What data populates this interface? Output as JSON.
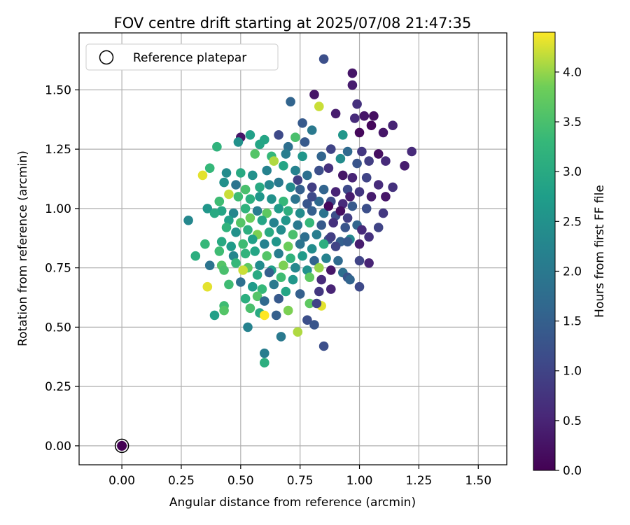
{
  "chart_data": {
    "type": "scatter",
    "title": "FOV centre drift starting at 2025/07/08 21:47:35",
    "xlabel": "Angular distance from reference (arcmin)",
    "ylabel": "Rotation from reference (arcmin)",
    "xlim": [
      -0.18,
      1.62
    ],
    "ylim": [
      -0.08,
      1.74
    ],
    "x_ticks": [
      "0.00",
      "0.25",
      "0.50",
      "0.75",
      "1.00",
      "1.25",
      "1.50"
    ],
    "y_ticks": [
      "0.00",
      "0.25",
      "0.50",
      "0.75",
      "1.00",
      "1.25",
      "1.50"
    ],
    "grid": true,
    "colormap": "viridis",
    "colorbar": {
      "label": "Hours from first FF file",
      "range": [
        0.0,
        4.4
      ],
      "ticks": [
        "0.0",
        "0.5",
        "1.0",
        "1.5",
        "2.0",
        "2.5",
        "3.0",
        "3.5",
        "4.0"
      ]
    },
    "legend": {
      "position": "top-left",
      "entries": [
        "Reference platepar"
      ]
    },
    "reference_point": {
      "x": 0.0,
      "y": 0.0
    },
    "points": [
      [
        0.85,
        1.63,
        1.2
      ],
      [
        0.97,
        1.57,
        0.3
      ],
      [
        0.97,
        1.52,
        0.4
      ],
      [
        0.81,
        1.48,
        0.3
      ],
      [
        0.71,
        1.45,
        1.6
      ],
      [
        0.99,
        1.44,
        0.7
      ],
      [
        0.83,
        1.43,
        4.2
      ],
      [
        0.9,
        1.4,
        0.4
      ],
      [
        0.98,
        1.38,
        0.6
      ],
      [
        1.02,
        1.39,
        0.3
      ],
      [
        1.06,
        1.39,
        0.2
      ],
      [
        1.14,
        1.35,
        0.5
      ],
      [
        0.76,
        1.36,
        1.4
      ],
      [
        1.0,
        1.32,
        0.1
      ],
      [
        1.05,
        1.35,
        0.1
      ],
      [
        1.1,
        1.32,
        0.3
      ],
      [
        0.8,
        1.33,
        2.0
      ],
      [
        0.93,
        1.31,
        2.6
      ],
      [
        0.66,
        1.31,
        1.1
      ],
      [
        0.73,
        1.3,
        3.5
      ],
      [
        0.54,
        1.31,
        2.8
      ],
      [
        0.5,
        1.3,
        0.3
      ],
      [
        0.6,
        1.29,
        2.9
      ],
      [
        0.49,
        1.28,
        2.5
      ],
      [
        0.4,
        1.26,
        3.2
      ],
      [
        0.58,
        1.27,
        2.9
      ],
      [
        0.7,
        1.26,
        1.8
      ],
      [
        0.77,
        1.28,
        1.4
      ],
      [
        0.88,
        1.25,
        1.0
      ],
      [
        0.95,
        1.24,
        1.7
      ],
      [
        1.01,
        1.24,
        0.8
      ],
      [
        1.08,
        1.23,
        0.2
      ],
      [
        1.22,
        1.24,
        0.6
      ],
      [
        0.56,
        1.23,
        3.6
      ],
      [
        0.63,
        1.22,
        3.3
      ],
      [
        0.69,
        1.23,
        2.1
      ],
      [
        0.76,
        1.22,
        2.6
      ],
      [
        0.84,
        1.22,
        1.6
      ],
      [
        0.92,
        1.21,
        2.4
      ],
      [
        0.99,
        1.19,
        1.3
      ],
      [
        1.04,
        1.2,
        0.9
      ],
      [
        1.11,
        1.2,
        0.6
      ],
      [
        1.19,
        1.18,
        0.4
      ],
      [
        0.37,
        1.17,
        3.3
      ],
      [
        0.44,
        1.15,
        2.4
      ],
      [
        0.5,
        1.15,
        3.0
      ],
      [
        0.55,
        1.14,
        2.5
      ],
      [
        0.61,
        1.16,
        2.2
      ],
      [
        0.64,
        1.2,
        4.1
      ],
      [
        0.68,
        1.18,
        2.9
      ],
      [
        0.73,
        1.16,
        2.2
      ],
      [
        0.78,
        1.14,
        1.8
      ],
      [
        0.83,
        1.16,
        1.2
      ],
      [
        0.87,
        1.17,
        0.7
      ],
      [
        0.93,
        1.14,
        0.3
      ],
      [
        0.97,
        1.13,
        0.5
      ],
      [
        1.03,
        1.13,
        1.0
      ],
      [
        1.08,
        1.1,
        0.6
      ],
      [
        1.14,
        1.09,
        0.7
      ],
      [
        0.34,
        1.14,
        4.3
      ],
      [
        0.43,
        1.11,
        2.5
      ],
      [
        0.48,
        1.1,
        1.9
      ],
      [
        0.52,
        1.08,
        3.5
      ],
      [
        0.58,
        1.09,
        3.0
      ],
      [
        0.62,
        1.1,
        2.3
      ],
      [
        0.66,
        1.11,
        2.0
      ],
      [
        0.71,
        1.09,
        2.4
      ],
      [
        0.75,
        1.08,
        1.5
      ],
      [
        0.8,
        1.09,
        0.9
      ],
      [
        0.85,
        1.08,
        1.6
      ],
      [
        0.9,
        1.07,
        0.5
      ],
      [
        0.95,
        1.08,
        1.1
      ],
      [
        1.0,
        1.07,
        0.8
      ],
      [
        1.05,
        1.05,
        0.4
      ],
      [
        1.11,
        1.05,
        0.3
      ],
      [
        0.45,
        1.06,
        4.2
      ],
      [
        0.49,
        1.05,
        3.4
      ],
      [
        0.54,
        1.04,
        3.1
      ],
      [
        0.58,
        1.05,
        2.6
      ],
      [
        0.63,
        1.04,
        2.5
      ],
      [
        0.68,
        1.03,
        3.3
      ],
      [
        0.73,
        1.04,
        1.9
      ],
      [
        0.78,
        1.02,
        1.3
      ],
      [
        0.83,
        1.03,
        1.7
      ],
      [
        0.88,
        1.03,
        1.1
      ],
      [
        0.93,
        1.02,
        0.6
      ],
      [
        0.97,
        1.01,
        1.4
      ],
      [
        1.03,
        1.0,
        1.2
      ],
      [
        0.41,
        1.03,
        3.4
      ],
      [
        0.36,
        1.0,
        2.6
      ],
      [
        0.42,
        0.99,
        2.9
      ],
      [
        0.47,
        0.98,
        2.3
      ],
      [
        0.52,
        1.0,
        3.2
      ],
      [
        0.57,
        0.99,
        2.1
      ],
      [
        0.61,
        0.98,
        3.7
      ],
      [
        0.66,
        1.0,
        2.7
      ],
      [
        0.7,
        0.99,
        3.1
      ],
      [
        0.75,
        0.98,
        2.4
      ],
      [
        0.8,
        0.99,
        1.5
      ],
      [
        0.85,
        0.98,
        1.9
      ],
      [
        0.9,
        0.97,
        1.2
      ],
      [
        0.95,
        0.96,
        0.9
      ],
      [
        1.1,
        0.98,
        0.8
      ],
      [
        0.28,
        0.95,
        2.3
      ],
      [
        0.39,
        0.98,
        3.0
      ],
      [
        0.45,
        0.95,
        2.8
      ],
      [
        0.5,
        0.94,
        3.6
      ],
      [
        0.54,
        0.96,
        3.8
      ],
      [
        0.59,
        0.95,
        2.9
      ],
      [
        0.64,
        0.94,
        2.2
      ],
      [
        0.69,
        0.95,
        2.6
      ],
      [
        0.74,
        0.93,
        2.0
      ],
      [
        0.79,
        0.94,
        3.3
      ],
      [
        0.84,
        0.93,
        1.4
      ],
      [
        0.89,
        0.94,
        0.7
      ],
      [
        0.94,
        0.92,
        1.3
      ],
      [
        0.99,
        0.93,
        1.6
      ],
      [
        1.01,
        0.91,
        0.6
      ],
      [
        1.08,
        0.92,
        1.0
      ],
      [
        0.44,
        0.92,
        3.2
      ],
      [
        0.48,
        0.9,
        2.5
      ],
      [
        0.53,
        0.91,
        3.1
      ],
      [
        0.57,
        0.89,
        3.9
      ],
      [
        0.62,
        0.9,
        3.0
      ],
      [
        0.67,
        0.91,
        2.4
      ],
      [
        0.72,
        0.89,
        3.5
      ],
      [
        0.77,
        0.88,
        1.8
      ],
      [
        0.82,
        0.89,
        2.1
      ],
      [
        0.87,
        0.87,
        1.2
      ],
      [
        0.92,
        0.86,
        1.5
      ],
      [
        0.96,
        0.87,
        2.3
      ],
      [
        1.0,
        0.85,
        0.4
      ],
      [
        1.04,
        0.88,
        0.7
      ],
      [
        0.35,
        0.85,
        3.3
      ],
      [
        0.42,
        0.86,
        3.0
      ],
      [
        0.46,
        0.84,
        2.7
      ],
      [
        0.51,
        0.85,
        3.4
      ],
      [
        0.55,
        0.87,
        2.8
      ],
      [
        0.6,
        0.85,
        2.2
      ],
      [
        0.65,
        0.86,
        2.6
      ],
      [
        0.7,
        0.84,
        3.8
      ],
      [
        0.75,
        0.85,
        1.9
      ],
      [
        0.8,
        0.83,
        2.4
      ],
      [
        0.85,
        0.85,
        3.1
      ],
      [
        0.9,
        0.84,
        1.0
      ],
      [
        0.95,
        0.86,
        1.4
      ],
      [
        0.31,
        0.8,
        3.1
      ],
      [
        0.41,
        0.82,
        3.4
      ],
      [
        0.47,
        0.8,
        2.3
      ],
      [
        0.52,
        0.81,
        3.2
      ],
      [
        0.56,
        0.82,
        2.9
      ],
      [
        0.61,
        0.8,
        3.6
      ],
      [
        0.66,
        0.81,
        2.1
      ],
      [
        0.71,
        0.79,
        3.2
      ],
      [
        0.76,
        0.8,
        2.7
      ],
      [
        0.81,
        0.78,
        1.6
      ],
      [
        0.86,
        0.79,
        2.2
      ],
      [
        0.91,
        0.78,
        1.7
      ],
      [
        1.0,
        0.78,
        1.0
      ],
      [
        1.04,
        0.77,
        0.5
      ],
      [
        0.37,
        0.76,
        1.9
      ],
      [
        0.42,
        0.76,
        3.6
      ],
      [
        0.48,
        0.77,
        3.3
      ],
      [
        0.53,
        0.75,
        3.7
      ],
      [
        0.58,
        0.76,
        2.4
      ],
      [
        0.63,
        0.74,
        2.8
      ],
      [
        0.68,
        0.76,
        3.9
      ],
      [
        0.73,
        0.75,
        2.3
      ],
      [
        0.78,
        0.74,
        2.5
      ],
      [
        0.83,
        0.75,
        4.0
      ],
      [
        0.88,
        0.74,
        0.3
      ],
      [
        0.93,
        0.73,
        1.8
      ],
      [
        0.43,
        0.74,
        3.5
      ],
      [
        0.51,
        0.74,
        4.2
      ],
      [
        0.57,
        0.72,
        3.0
      ],
      [
        0.62,
        0.73,
        1.5
      ],
      [
        0.67,
        0.71,
        3.4
      ],
      [
        0.72,
        0.7,
        2.6
      ],
      [
        0.79,
        0.71,
        3.7
      ],
      [
        0.84,
        0.7,
        0.6
      ],
      [
        0.95,
        0.71,
        1.3
      ],
      [
        0.96,
        0.7,
        1.6
      ],
      [
        1.0,
        0.67,
        1.1
      ],
      [
        0.36,
        0.67,
        4.3
      ],
      [
        0.45,
        0.68,
        3.4
      ],
      [
        0.5,
        0.69,
        1.8
      ],
      [
        0.55,
        0.67,
        2.7
      ],
      [
        0.59,
        0.66,
        3.3
      ],
      [
        0.64,
        0.68,
        2.0
      ],
      [
        0.69,
        0.65,
        2.9
      ],
      [
        0.75,
        0.64,
        1.5
      ],
      [
        0.83,
        0.65,
        0.8
      ],
      [
        0.88,
        0.66,
        0.5
      ],
      [
        0.52,
        0.62,
        3.1
      ],
      [
        0.57,
        0.63,
        3.6
      ],
      [
        0.6,
        0.61,
        1.7
      ],
      [
        0.66,
        0.62,
        1.4
      ],
      [
        0.79,
        0.6,
        3.7
      ],
      [
        0.84,
        0.59,
        4.3
      ],
      [
        0.43,
        0.59,
        3.4
      ],
      [
        0.43,
        0.57,
        3.6
      ],
      [
        0.54,
        0.58,
        3.5
      ],
      [
        0.58,
        0.56,
        3.0
      ],
      [
        0.65,
        0.55,
        1.5
      ],
      [
        0.7,
        0.57,
        3.9
      ],
      [
        0.39,
        0.55,
        2.8
      ],
      [
        0.6,
        0.55,
        4.4
      ],
      [
        0.78,
        0.53,
        1.2
      ],
      [
        0.81,
        0.51,
        1.3
      ],
      [
        0.74,
        0.48,
        4.1
      ],
      [
        0.53,
        0.5,
        2.2
      ],
      [
        0.67,
        0.46,
        2.0
      ],
      [
        0.85,
        0.42,
        1.2
      ],
      [
        0.6,
        0.39,
        2.1
      ],
      [
        0.6,
        0.35,
        3.1
      ],
      [
        0.82,
        0.6,
        1.0
      ],
      [
        0.88,
        0.88,
        0.9
      ],
      [
        0.92,
        0.99,
        0.2
      ],
      [
        0.96,
        1.05,
        0.4
      ],
      [
        0.87,
        1.01,
        0.1
      ],
      [
        0.8,
        1.05,
        1.1
      ],
      [
        0.74,
        1.12,
        0.9
      ]
    ]
  }
}
